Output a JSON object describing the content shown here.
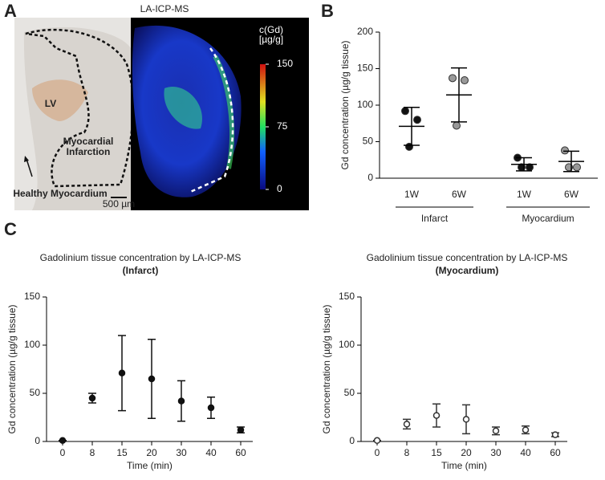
{
  "panel_labels": [
    "A",
    "B",
    "C"
  ],
  "image_panel": {
    "title": "LA-ICP-MS",
    "lv": "LV",
    "infarction": [
      "Myocardial",
      "Infarction"
    ],
    "healthy": "Healthy Myocardium",
    "scale_bar": "500 µm",
    "colorbar": {
      "label": [
        "c(Gd)",
        "[µg/g]"
      ],
      "lim": [
        0,
        150
      ],
      "ticks": [
        150,
        75,
        0
      ]
    }
  },
  "chart_data": [
    {
      "type": "dot_plot",
      "ylabel": "Gd concentration (µg/g tissue)",
      "ylim": [
        0,
        200
      ],
      "yticks": [
        0,
        50,
        100,
        150,
        200
      ],
      "colors": [
        "#111111",
        "#999999"
      ],
      "groups": [
        {
          "name": "Infarct",
          "categories": [
            "1W",
            "6W"
          ],
          "points": [
            [
              92,
              80,
              43
            ],
            [
              137,
              134,
              72
            ]
          ],
          "means": [
            71,
            114
          ],
          "sd": [
            26,
            37
          ]
        },
        {
          "name": "Myocardium",
          "categories": [
            "1W",
            "6W"
          ],
          "points": [
            [
              28,
              15,
              15
            ],
            [
              38,
              15,
              15
            ]
          ],
          "means": [
            19,
            23
          ],
          "sd": [
            9,
            14
          ]
        }
      ]
    },
    {
      "type": "error_scatter",
      "title": "Gadolinium tissue concentration by LA-ICP-MS",
      "subtitle": "(Infarct)",
      "xlabel": "Time (min)",
      "ylabel": "Gd concentration (µg/g tissue)",
      "categories": [
        "0",
        "8",
        "15",
        "20",
        "30",
        "40",
        "60"
      ],
      "values": [
        1,
        45,
        71,
        65,
        42,
        35,
        12
      ],
      "errors": [
        0,
        5,
        39,
        41,
        21,
        11,
        3
      ],
      "ylim": [
        0,
        150
      ],
      "yticks": [
        0,
        50,
        100,
        150
      ],
      "marker": "filled",
      "color": "#111111"
    },
    {
      "type": "error_scatter",
      "title": "Gadolinium tissue concentration by LA-ICP-MS",
      "subtitle": "(Myocardium)",
      "xlabel": "Time (min)",
      "ylabel": "Gd concentration (µg/g tissue)",
      "categories": [
        "0",
        "8",
        "15",
        "20",
        "30",
        "40",
        "60"
      ],
      "values": [
        1,
        18,
        27,
        23,
        11,
        12,
        7
      ],
      "errors": [
        0,
        5,
        12,
        15,
        4,
        4,
        2
      ],
      "ylim": [
        0,
        150
      ],
      "yticks": [
        0,
        50,
        100,
        150
      ],
      "marker": "open",
      "color": "#333333"
    }
  ]
}
